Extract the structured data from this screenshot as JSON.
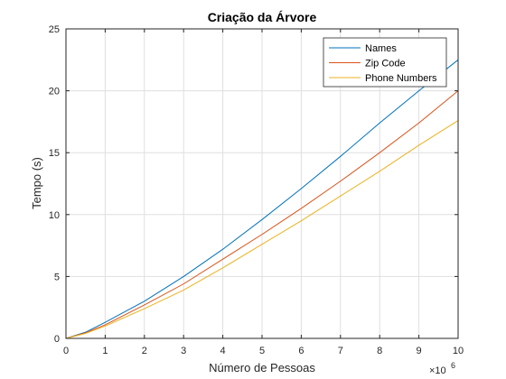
{
  "chart_data": {
    "type": "line",
    "title": "Criação da Árvore",
    "xlabel": "Número de Pessoas",
    "ylabel": "Tempo (s)",
    "x_exponent_base": "×10",
    "x_exponent_power": "6",
    "xlim": [
      0,
      10
    ],
    "ylim": [
      0,
      25
    ],
    "xticks": [
      0,
      1,
      2,
      3,
      4,
      5,
      6,
      7,
      8,
      9,
      10
    ],
    "yticks": [
      0,
      5,
      10,
      15,
      20,
      25
    ],
    "grid": true,
    "legend_position": "top-right",
    "x": [
      0,
      0.5,
      1,
      2,
      3,
      4,
      5,
      6,
      7,
      8,
      9,
      10
    ],
    "series": [
      {
        "name": "Names",
        "color": "#0072BD",
        "values": [
          0,
          0.5,
          1.3,
          3.0,
          5.0,
          7.2,
          9.6,
          12.1,
          14.7,
          17.4,
          20.0,
          22.5
        ]
      },
      {
        "name": "Zip Code",
        "color": "#D95319",
        "values": [
          0,
          0.45,
          1.1,
          2.7,
          4.4,
          6.4,
          8.4,
          10.5,
          12.7,
          15.0,
          17.4,
          20.0
        ]
      },
      {
        "name": "Phone Numbers",
        "color": "#EDB120",
        "values": [
          0,
          0.4,
          1.0,
          2.4,
          3.9,
          5.7,
          7.6,
          9.5,
          11.5,
          13.5,
          15.6,
          17.6
        ]
      }
    ]
  }
}
